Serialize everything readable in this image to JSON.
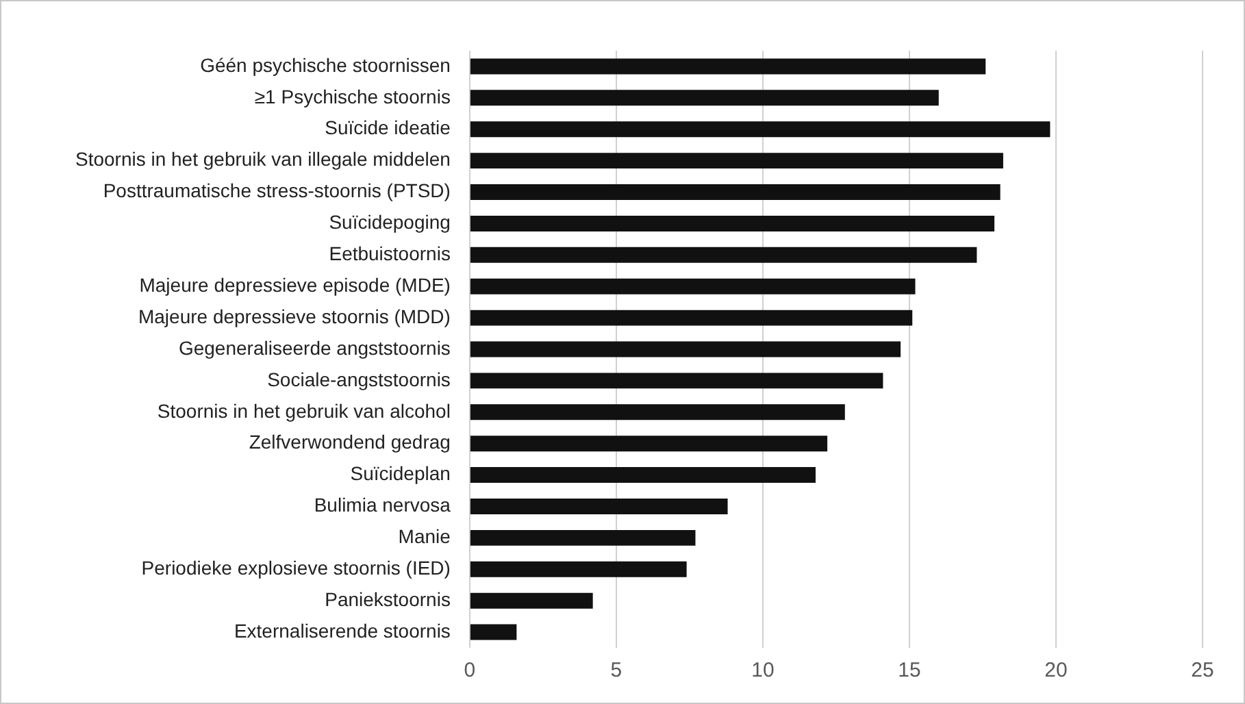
{
  "chart_data": {
    "type": "bar",
    "orientation": "horizontal",
    "categories": [
      "Géén psychische stoornissen",
      "≥1 Psychische stoornis",
      "Suïcide ideatie",
      "Stoornis in het gebruik van illegale middelen",
      "Posttraumatische stress-stoornis (PTSD)",
      "Suïcidepoging",
      "Eetbuistoornis",
      "Majeure depressieve episode (MDE)",
      "Majeure depressieve stoornis (MDD)",
      "Gegeneraliseerde angststoornis",
      "Sociale-angststoornis",
      "Stoornis in het gebruik van alcohol",
      "Zelfverwondend gedrag",
      "Suïcideplan",
      "Bulimia nervosa",
      "Manie",
      "Periodieke explosieve stoornis (IED)",
      "Paniekstoornis",
      "Externaliserende stoornis"
    ],
    "values": [
      17.6,
      16.0,
      19.8,
      18.2,
      18.1,
      17.9,
      17.3,
      15.2,
      15.1,
      14.7,
      14.1,
      12.8,
      12.2,
      11.8,
      8.8,
      7.7,
      7.4,
      4.2,
      1.6
    ],
    "color": "#111111",
    "xlim": [
      0,
      25
    ],
    "xticks": [
      0,
      5,
      10,
      15,
      20,
      25
    ],
    "grid": "x",
    "legend": false
  }
}
